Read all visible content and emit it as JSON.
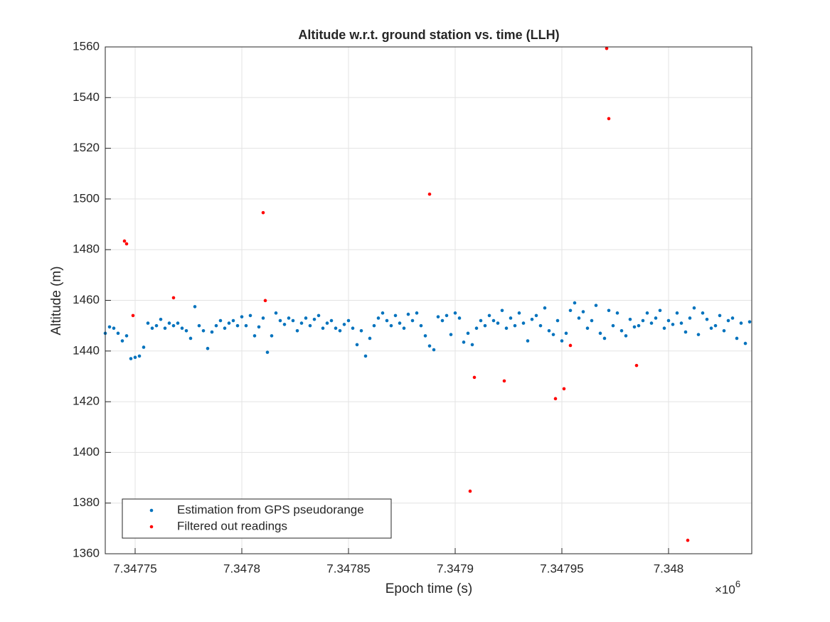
{
  "chart_data": {
    "type": "scatter",
    "title": "Altitude w.r.t. ground station vs. time (LLH)",
    "x_label": "Epoch time (s)",
    "y_label": "Altitude (m)",
    "x_multiplier": "×10",
    "x_multiplier_exponent": "6",
    "xlim": [
      7347736,
      7348039
    ],
    "ylim": [
      1360,
      1560
    ],
    "xticks": [
      {
        "value": 7347750,
        "label": "7.34775"
      },
      {
        "value": 7347800,
        "label": "7.3478"
      },
      {
        "value": 7347850,
        "label": "7.34785"
      },
      {
        "value": 7347900,
        "label": "7.3479"
      },
      {
        "value": 7347950,
        "label": "7.34795"
      },
      {
        "value": 7348000,
        "label": "7.348"
      }
    ],
    "yticks": [
      1360,
      1380,
      1400,
      1420,
      1440,
      1460,
      1480,
      1500,
      1520,
      1540,
      1560
    ],
    "grid": true,
    "legend": "lower left",
    "series": [
      {
        "name": "Estimation from GPS pseudorange",
        "color": "#0072bd",
        "x": [
          7347736,
          7347738,
          7347740,
          7347742,
          7347744,
          7347746,
          7347748,
          7347750,
          7347752,
          7347754,
          7347756,
          7347758,
          7347760,
          7347762,
          7347764,
          7347766,
          7347768,
          7347770,
          7347772,
          7347774,
          7347776,
          7347778,
          7347780,
          7347782,
          7347784,
          7347786,
          7347788,
          7347790,
          7347792,
          7347794,
          7347796,
          7347798,
          7347800,
          7347802,
          7347804,
          7347806,
          7347808,
          7347810,
          7347812,
          7347814,
          7347816,
          7347818,
          7347820,
          7347822,
          7347824,
          7347826,
          7347828,
          7347830,
          7347832,
          7347834,
          7347836,
          7347838,
          7347840,
          7347842,
          7347844,
          7347846,
          7347848,
          7347850,
          7347852,
          7347854,
          7347856,
          7347858,
          7347860,
          7347862,
          7347864,
          7347866,
          7347868,
          7347870,
          7347872,
          7347874,
          7347876,
          7347878,
          7347880,
          7347882,
          7347884,
          7347886,
          7347888,
          7347890,
          7347892,
          7347894,
          7347896,
          7347898,
          7347900,
          7347902,
          7347904,
          7347906,
          7347908,
          7347910,
          7347912,
          7347914,
          7347916,
          7347918,
          7347920,
          7347922,
          7347924,
          7347926,
          7347928,
          7347930,
          7347932,
          7347934,
          7347936,
          7347938,
          7347940,
          7347942,
          7347944,
          7347946,
          7347948,
          7347950,
          7347952,
          7347954,
          7347956,
          7347958,
          7347960,
          7347962,
          7347964,
          7347966,
          7347968,
          7347970,
          7347972,
          7347974,
          7347976,
          7347978,
          7347980,
          7347982,
          7347984,
          7347986,
          7347988,
          7347990,
          7347992,
          7347994,
          7347996,
          7347998,
          7348000,
          7348002,
          7348004,
          7348006,
          7348008,
          7348010,
          7348012,
          7348014,
          7348016,
          7348018,
          7348020,
          7348022,
          7348024,
          7348026,
          7348028,
          7348030,
          7348032,
          7348034,
          7348036,
          7348038
        ],
        "values": [
          1447,
          1449.5,
          1449,
          1447,
          1444,
          1446,
          1437,
          1437.5,
          1438,
          1441.5,
          1451,
          1449,
          1450,
          1452.5,
          1449,
          1451,
          1450,
          1451,
          1449,
          1448,
          1445,
          1457.5,
          1450,
          1448,
          1441,
          1447.5,
          1450,
          1452,
          1449,
          1451,
          1452,
          1450,
          1453.5,
          1450,
          1454,
          1446,
          1449.5,
          1453,
          1439.5,
          1446,
          1455,
          1452,
          1450.5,
          1453,
          1452,
          1448,
          1451,
          1453,
          1450,
          1452.5,
          1454,
          1449,
          1451,
          1452,
          1449,
          1448,
          1450.5,
          1452,
          1449,
          1442.5,
          1448,
          1438,
          1445,
          1450,
          1453,
          1455,
          1452,
          1450,
          1454,
          1451,
          1449,
          1454.5,
          1452,
          1455,
          1450,
          1446,
          1442,
          1440.5,
          1453.5,
          1452,
          1454,
          1446.5,
          1455,
          1453,
          1443.5,
          1447,
          1442.5,
          1449,
          1452,
          1450,
          1454,
          1452,
          1451,
          1456,
          1449,
          1453,
          1450,
          1455,
          1451,
          1444,
          1452.5,
          1454,
          1450,
          1457,
          1448,
          1446.5,
          1452,
          1444,
          1447,
          1456,
          1459,
          1453,
          1455.5,
          1449,
          1452,
          1458,
          1447,
          1445,
          1456,
          1450,
          1455,
          1448,
          1446,
          1452.5,
          1449.5,
          1450,
          1452,
          1455,
          1451,
          1453,
          1456,
          1449,
          1452,
          1450.5,
          1455,
          1451,
          1447.5,
          1453,
          1457,
          1446.5,
          1455,
          1452.5,
          1449,
          1450,
          1454,
          1448,
          1452,
          1453,
          1445,
          1451,
          1443,
          1451.5
        ]
      },
      {
        "name": "Filtered out readings",
        "color": "#ff0000",
        "x": [
          7347745,
          7347746,
          7347749,
          7347768,
          7347810,
          7347811,
          7347888,
          7347907,
          7347909,
          7347923,
          7347947,
          7347951,
          7347954,
          7347971,
          7347972,
          7347985,
          7348009
        ],
        "values": [
          1483.4,
          1482.3,
          1454,
          1461,
          1494.6,
          1459.9,
          1501.9,
          1384.7,
          1429.6,
          1428.2,
          1421.2,
          1425.1,
          1442.2,
          1559.4,
          1531.7,
          1434.3,
          1365.3
        ]
      }
    ]
  }
}
